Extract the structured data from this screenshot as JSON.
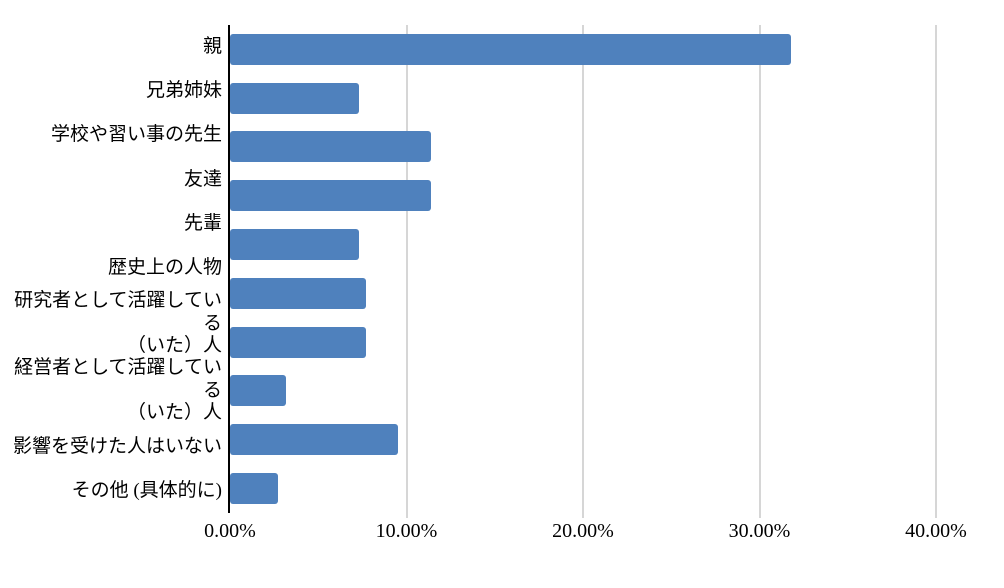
{
  "chart_data": {
    "type": "bar",
    "orientation": "horizontal",
    "title": "",
    "xlabel": "",
    "ylabel": "",
    "categories": [
      "親",
      "兄弟姉妹",
      "学校や習い事の先生",
      "友達",
      "先輩",
      "歴史上の人物",
      "研究者として活躍している\n（いた）人",
      "経営者として活躍している\n（いた）人",
      "影響を受けた人はいない",
      "その他 (具体的に)"
    ],
    "values": [
      31.8,
      7.3,
      11.4,
      11.4,
      7.3,
      7.7,
      7.7,
      3.2,
      9.5,
      2.7
    ],
    "unit": "%",
    "xlim": [
      0,
      40
    ],
    "x_major_unit": 10,
    "x_tick_labels": [
      "0.00%",
      "10.00%",
      "20.00%",
      "30.00%",
      "40.00%"
    ],
    "grid": true,
    "legend": false,
    "bar_color": "#4f81bd",
    "gridline_color": "#d6d6d6",
    "axis_color": "#000000"
  }
}
